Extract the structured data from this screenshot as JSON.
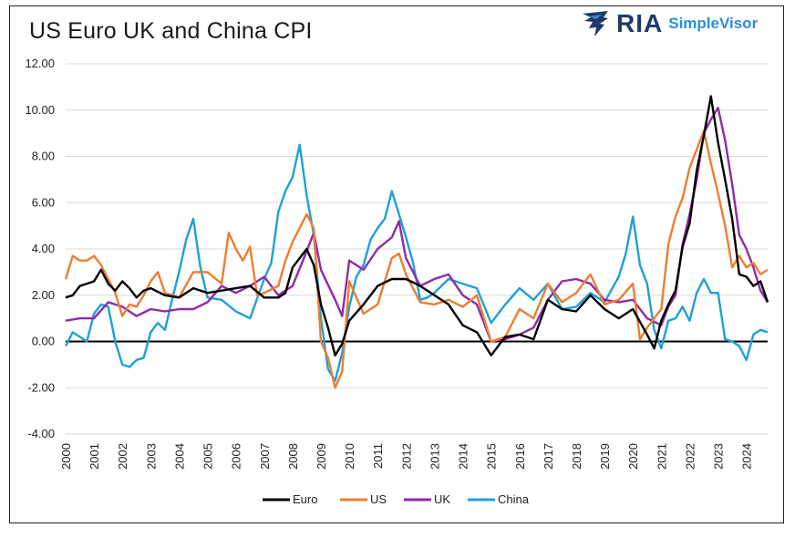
{
  "header": {
    "title": "US Euro UK and China CPI",
    "brand_ria": "RIA",
    "brand_simplevisor": "SimpleVisor"
  },
  "colors": {
    "Euro": "#000000",
    "US": "#ed7d31",
    "UK": "#8e2ba6",
    "China": "#1ea0d7",
    "grid": "#d9d9d9",
    "zero_line": "#000000",
    "brand_dark": "#1e3a6b",
    "brand_light": "#2b8fd6"
  },
  "chart_data": {
    "type": "line",
    "title": "US Euro UK and China CPI",
    "xlabel": "",
    "ylabel": "",
    "xlim": [
      2000.0,
      2024.75
    ],
    "ylim": [
      -4,
      12
    ],
    "y_ticks": [
      "-4.00",
      "-2.00",
      "0.00",
      "2.00",
      "4.00",
      "6.00",
      "8.00",
      "10.00",
      "12.00"
    ],
    "x_ticks": [
      "2000",
      "2001",
      "2002",
      "2003",
      "2004",
      "2005",
      "2006",
      "2007",
      "2008",
      "2009",
      "2010",
      "2011",
      "2012",
      "2013",
      "2014",
      "2015",
      "2016",
      "2017",
      "2018",
      "2019",
      "2020",
      "2021",
      "2022",
      "2023",
      "2024"
    ],
    "grid": "horizontal",
    "legend_position": "bottom",
    "series": [
      {
        "name": "Euro",
        "x": [
          2000.0,
          2000.25,
          2000.5,
          2000.75,
          2001.0,
          2001.25,
          2001.5,
          2001.75,
          2002.0,
          2002.25,
          2002.5,
          2002.75,
          2003.0,
          2003.5,
          2004.0,
          2004.5,
          2005.0,
          2005.5,
          2006.0,
          2006.5,
          2007.0,
          2007.5,
          2007.75,
          2008.0,
          2008.25,
          2008.5,
          2008.75,
          2009.0,
          2009.25,
          2009.5,
          2009.75,
          2010.0,
          2010.5,
          2011.0,
          2011.5,
          2012.0,
          2012.5,
          2013.0,
          2013.5,
          2014.0,
          2014.5,
          2015.0,
          2015.5,
          2016.0,
          2016.5,
          2017.0,
          2017.5,
          2018.0,
          2018.5,
          2019.0,
          2019.5,
          2020.0,
          2020.5,
          2020.75,
          2021.0,
          2021.25,
          2021.5,
          2021.75,
          2022.0,
          2022.25,
          2022.5,
          2022.75,
          2023.0,
          2023.25,
          2023.5,
          2023.75,
          2024.0,
          2024.25,
          2024.5,
          2024.75
        ],
        "values": [
          1.9,
          2.0,
          2.4,
          2.5,
          2.6,
          3.1,
          2.5,
          2.2,
          2.6,
          2.3,
          1.9,
          2.2,
          2.3,
          2.0,
          1.9,
          2.3,
          2.1,
          2.2,
          2.3,
          2.4,
          1.9,
          1.9,
          2.1,
          3.2,
          3.6,
          4.0,
          3.3,
          1.6,
          0.6,
          -0.6,
          -0.1,
          0.9,
          1.6,
          2.4,
          2.7,
          2.7,
          2.4,
          2.0,
          1.6,
          0.7,
          0.4,
          -0.6,
          0.2,
          0.3,
          0.1,
          1.8,
          1.4,
          1.3,
          2.0,
          1.4,
          1.0,
          1.4,
          0.3,
          -0.3,
          0.9,
          1.6,
          2.2,
          4.1,
          5.1,
          7.4,
          8.9,
          10.6,
          8.6,
          7.0,
          5.3,
          2.9,
          2.8,
          2.4,
          2.6,
          1.7
        ]
      },
      {
        "name": "US",
        "x": [
          2000.0,
          2000.25,
          2000.5,
          2000.75,
          2001.0,
          2001.25,
          2001.5,
          2001.75,
          2002.0,
          2002.25,
          2002.5,
          2002.75,
          2003.0,
          2003.25,
          2003.5,
          2004.0,
          2004.5,
          2005.0,
          2005.5,
          2005.75,
          2006.0,
          2006.25,
          2006.5,
          2006.75,
          2007.0,
          2007.5,
          2007.75,
          2008.0,
          2008.5,
          2008.75,
          2009.0,
          2009.25,
          2009.5,
          2009.75,
          2010.0,
          2010.5,
          2011.0,
          2011.5,
          2011.75,
          2012.0,
          2012.5,
          2013.0,
          2013.5,
          2014.0,
          2014.5,
          2015.0,
          2015.5,
          2016.0,
          2016.5,
          2017.0,
          2017.5,
          2018.0,
          2018.5,
          2019.0,
          2019.5,
          2020.0,
          2020.25,
          2020.5,
          2021.0,
          2021.25,
          2021.5,
          2021.75,
          2022.0,
          2022.25,
          2022.5,
          2022.75,
          2023.0,
          2023.25,
          2023.5,
          2023.75,
          2024.0,
          2024.25,
          2024.5,
          2024.75
        ],
        "values": [
          2.7,
          3.7,
          3.5,
          3.5,
          3.7,
          3.3,
          2.7,
          2.1,
          1.1,
          1.6,
          1.5,
          2.0,
          2.6,
          3.0,
          2.1,
          1.9,
          3.0,
          3.0,
          2.5,
          4.7,
          4.0,
          3.5,
          4.1,
          2.0,
          2.1,
          2.4,
          3.5,
          4.3,
          5.5,
          4.9,
          0.0,
          -0.7,
          -2.0,
          -1.3,
          2.6,
          1.2,
          1.6,
          3.6,
          3.8,
          2.9,
          1.7,
          1.6,
          1.8,
          1.5,
          2.0,
          0.0,
          0.2,
          1.4,
          1.0,
          2.5,
          1.7,
          2.1,
          2.9,
          1.6,
          1.8,
          2.5,
          0.1,
          0.6,
          1.4,
          4.2,
          5.4,
          6.2,
          7.5,
          8.3,
          9.1,
          7.7,
          6.4,
          5.0,
          3.2,
          3.7,
          3.2,
          3.4,
          2.9,
          3.1
        ]
      },
      {
        "name": "UK",
        "x": [
          2000.0,
          2000.5,
          2001.0,
          2001.5,
          2002.0,
          2002.5,
          2003.0,
          2003.5,
          2004.0,
          2004.5,
          2005.0,
          2005.5,
          2006.0,
          2006.5,
          2007.0,
          2007.5,
          2008.0,
          2008.5,
          2008.75,
          2009.0,
          2009.5,
          2009.75,
          2010.0,
          2010.5,
          2011.0,
          2011.5,
          2011.75,
          2012.0,
          2012.5,
          2013.0,
          2013.5,
          2014.0,
          2014.5,
          2015.0,
          2015.5,
          2016.0,
          2016.5,
          2017.0,
          2017.5,
          2018.0,
          2018.5,
          2019.0,
          2019.5,
          2020.0,
          2020.5,
          2021.0,
          2021.25,
          2021.5,
          2021.75,
          2022.0,
          2022.25,
          2022.5,
          2022.75,
          2023.0,
          2023.25,
          2023.5,
          2023.75,
          2024.0,
          2024.25,
          2024.5,
          2024.75
        ],
        "values": [
          0.9,
          1.0,
          1.0,
          1.7,
          1.5,
          1.1,
          1.4,
          1.3,
          1.4,
          1.4,
          1.7,
          2.4,
          2.1,
          2.4,
          2.8,
          2.0,
          2.4,
          3.9,
          4.7,
          3.1,
          1.8,
          1.1,
          3.5,
          3.1,
          4.0,
          4.5,
          5.2,
          3.6,
          2.4,
          2.7,
          2.9,
          2.0,
          1.6,
          0.0,
          0.1,
          0.3,
          0.6,
          1.8,
          2.6,
          2.7,
          2.5,
          1.8,
          1.7,
          1.8,
          1.0,
          0.7,
          1.5,
          2.0,
          4.2,
          5.5,
          7.0,
          9.0,
          9.6,
          10.1,
          8.7,
          6.8,
          4.6,
          4.0,
          3.2,
          2.2,
          1.7
        ]
      },
      {
        "name": "China",
        "x": [
          2000.0,
          2000.25,
          2000.5,
          2000.75,
          2001.0,
          2001.25,
          2001.5,
          2001.75,
          2002.0,
          2002.25,
          2002.5,
          2002.75,
          2003.0,
          2003.25,
          2003.5,
          2003.75,
          2004.0,
          2004.25,
          2004.5,
          2004.75,
          2005.0,
          2005.5,
          2006.0,
          2006.5,
          2007.0,
          2007.25,
          2007.5,
          2007.75,
          2008.0,
          2008.25,
          2008.5,
          2008.75,
          2009.0,
          2009.25,
          2009.5,
          2009.75,
          2010.0,
          2010.25,
          2010.5,
          2010.75,
          2011.0,
          2011.25,
          2011.5,
          2011.75,
          2012.0,
          2012.25,
          2012.5,
          2012.75,
          2013.0,
          2013.5,
          2014.0,
          2014.5,
          2015.0,
          2015.5,
          2016.0,
          2016.5,
          2017.0,
          2017.5,
          2018.0,
          2018.5,
          2019.0,
          2019.5,
          2019.75,
          2020.0,
          2020.25,
          2020.5,
          2020.75,
          2021.0,
          2021.25,
          2021.5,
          2021.75,
          2022.0,
          2022.25,
          2022.5,
          2022.75,
          2023.0,
          2023.25,
          2023.5,
          2023.75,
          2024.0,
          2024.25,
          2024.5,
          2024.75
        ],
        "values": [
          -0.2,
          0.4,
          0.2,
          0.0,
          1.2,
          1.6,
          1.5,
          0.0,
          -1.0,
          -1.1,
          -0.8,
          -0.7,
          0.4,
          0.8,
          0.5,
          1.8,
          3.0,
          4.4,
          5.3,
          3.2,
          1.9,
          1.8,
          1.3,
          1.0,
          2.7,
          3.4,
          5.6,
          6.5,
          7.1,
          8.5,
          6.3,
          4.6,
          1.0,
          -1.2,
          -1.7,
          -0.5,
          1.5,
          2.8,
          3.3,
          4.4,
          4.9,
          5.3,
          6.5,
          5.5,
          4.5,
          3.4,
          1.8,
          1.9,
          2.1,
          2.7,
          2.5,
          2.3,
          0.8,
          1.6,
          2.3,
          1.8,
          2.5,
          1.4,
          1.5,
          2.1,
          1.7,
          2.8,
          3.8,
          5.4,
          3.3,
          2.5,
          0.5,
          -0.3,
          0.9,
          1.0,
          1.5,
          0.9,
          2.1,
          2.7,
          2.1,
          2.1,
          0.1,
          0.0,
          -0.2,
          -0.8,
          0.3,
          0.5,
          0.4
        ]
      }
    ]
  }
}
